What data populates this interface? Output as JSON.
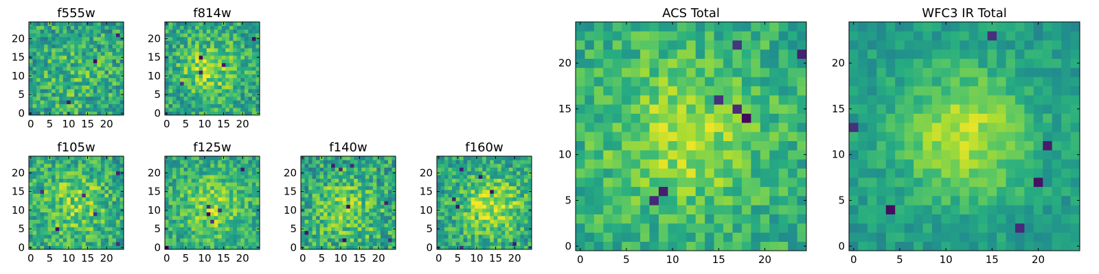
{
  "chart_data": [
    {
      "type": "heatmap",
      "title": "f555w",
      "xlabel": "",
      "ylabel": "",
      "xlim": [
        -0.5,
        24.5
      ],
      "ylim": [
        -0.5,
        24.5
      ],
      "xticks": [
        0,
        5,
        10,
        15,
        20
      ],
      "yticks": [
        0,
        5,
        10,
        15,
        20
      ],
      "colormap": "viridis",
      "grid": false,
      "value_range": [
        0,
        1
      ],
      "size": [
        25,
        25
      ],
      "seed": 11,
      "center": [
        12,
        10
      ],
      "sigma": 9,
      "peak": 0.12,
      "base": 0.56,
      "noise": 0.22,
      "spots": 3
    },
    {
      "type": "heatmap",
      "title": "f814w",
      "xlabel": "",
      "ylabel": "",
      "xlim": [
        -0.5,
        24.5
      ],
      "ylim": [
        -0.5,
        24.5
      ],
      "xticks": [
        0,
        5,
        10,
        15,
        20
      ],
      "yticks": [
        0,
        5,
        10,
        15,
        20
      ],
      "colormap": "viridis",
      "grid": false,
      "value_range": [
        0,
        1
      ],
      "size": [
        25,
        25
      ],
      "seed": 23,
      "center": [
        11,
        12
      ],
      "sigma": 5,
      "peak": 0.25,
      "base": 0.6,
      "noise": 0.2,
      "spots": 5
    },
    {
      "type": "heatmap",
      "title": "f105w",
      "xlabel": "",
      "ylabel": "",
      "xlim": [
        -0.5,
        24.5
      ],
      "ylim": [
        -0.5,
        24.5
      ],
      "xticks": [
        0,
        5,
        10,
        15,
        20
      ],
      "yticks": [
        0,
        5,
        10,
        15,
        20
      ],
      "colormap": "viridis",
      "grid": false,
      "value_range": [
        0,
        1
      ],
      "size": [
        25,
        25
      ],
      "seed": 37,
      "center": [
        12,
        12
      ],
      "sigma": 7,
      "peak": 0.22,
      "base": 0.58,
      "noise": 0.2,
      "spots": 6
    },
    {
      "type": "heatmap",
      "title": "f125w",
      "xlabel": "",
      "ylabel": "",
      "xlim": [
        -0.5,
        24.5
      ],
      "ylim": [
        -0.5,
        24.5
      ],
      "xticks": [
        0,
        5,
        10,
        15,
        20
      ],
      "yticks": [
        0,
        5,
        10,
        15,
        20
      ],
      "colormap": "viridis",
      "grid": false,
      "value_range": [
        0,
        1
      ],
      "size": [
        25,
        25
      ],
      "seed": 41,
      "center": [
        12,
        11
      ],
      "sigma": 6,
      "peak": 0.25,
      "base": 0.6,
      "noise": 0.18,
      "spots": 6
    },
    {
      "type": "heatmap",
      "title": "f140w",
      "xlabel": "",
      "ylabel": "",
      "xlim": [
        -0.5,
        24.5
      ],
      "ylim": [
        -0.5,
        24.5
      ],
      "xticks": [
        0,
        5,
        10,
        15,
        20
      ],
      "yticks": [
        0,
        5,
        10,
        15,
        20
      ],
      "colormap": "viridis",
      "grid": false,
      "value_range": [
        0,
        1
      ],
      "size": [
        25,
        25
      ],
      "seed": 53,
      "center": [
        12,
        10
      ],
      "sigma": 7,
      "peak": 0.2,
      "base": 0.58,
      "noise": 0.22,
      "spots": 8
    },
    {
      "type": "heatmap",
      "title": "f160w",
      "xlabel": "",
      "ylabel": "",
      "xlim": [
        -0.5,
        24.5
      ],
      "ylim": [
        -0.5,
        24.5
      ],
      "xticks": [
        0,
        5,
        10,
        15,
        20
      ],
      "yticks": [
        0,
        5,
        10,
        15,
        20
      ],
      "colormap": "viridis",
      "grid": false,
      "value_range": [
        0,
        1
      ],
      "size": [
        25,
        25
      ],
      "seed": 67,
      "center": [
        14,
        11
      ],
      "sigma": 6,
      "peak": 0.3,
      "base": 0.58,
      "noise": 0.2,
      "spots": 7
    },
    {
      "type": "heatmap",
      "title": "ACS Total",
      "xlabel": "",
      "ylabel": "",
      "xlim": [
        -0.5,
        24.5
      ],
      "ylim": [
        -0.5,
        24.5
      ],
      "xticks": [
        0,
        5,
        10,
        15,
        20
      ],
      "yticks": [
        0,
        5,
        10,
        15,
        20
      ],
      "colormap": "viridis",
      "grid": false,
      "value_range": [
        0,
        1
      ],
      "size": [
        25,
        25
      ],
      "seed": 79,
      "center": [
        11,
        12
      ],
      "sigma": 6,
      "peak": 0.25,
      "base": 0.62,
      "noise": 0.15,
      "spots": 7
    },
    {
      "type": "heatmap",
      "title": "WFC3 IR Total",
      "xlabel": "",
      "ylabel": "",
      "xlim": [
        -0.5,
        24.5
      ],
      "ylim": [
        -0.5,
        24.5
      ],
      "xticks": [
        0,
        5,
        10,
        15,
        20
      ],
      "yticks": [
        0,
        5,
        10,
        15,
        20
      ],
      "colormap": "viridis",
      "grid": false,
      "value_range": [
        0,
        1
      ],
      "size": [
        25,
        25
      ],
      "seed": 97,
      "center": [
        12,
        12
      ],
      "sigma": 5,
      "peak": 0.35,
      "base": 0.55,
      "noise": 0.1,
      "spots": 6
    }
  ]
}
